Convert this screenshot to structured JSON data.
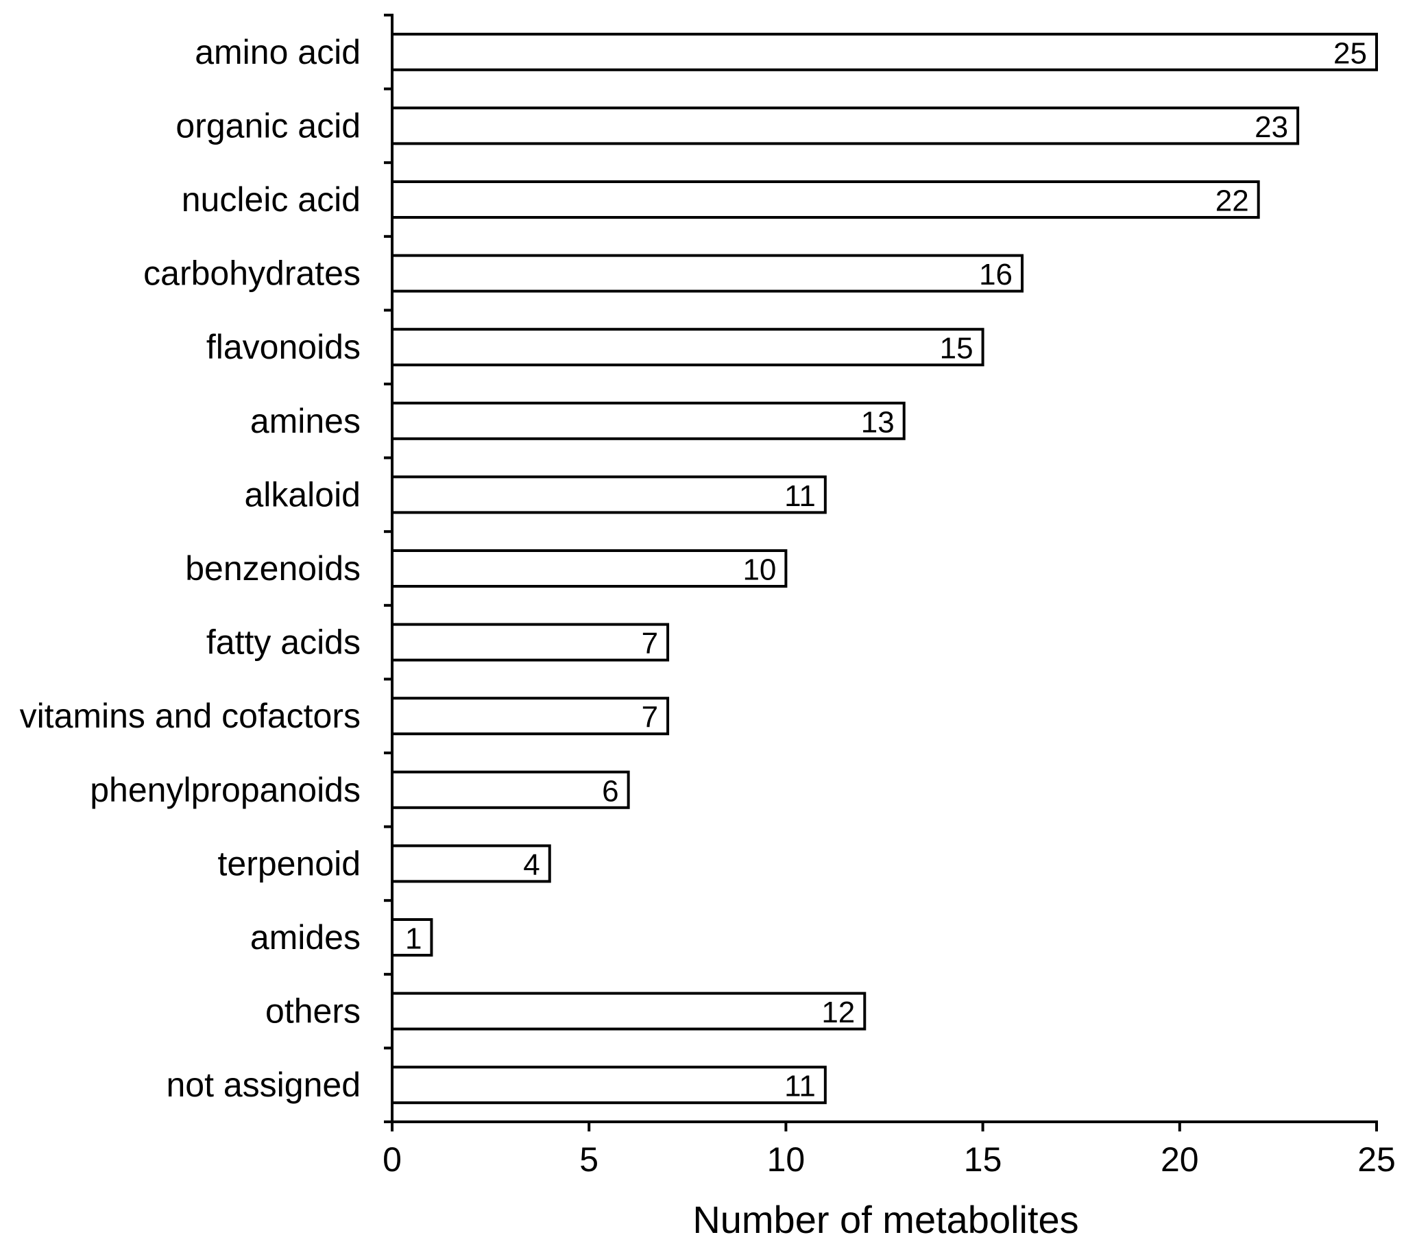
{
  "chart_data": {
    "type": "bar",
    "orientation": "horizontal",
    "categories": [
      "amino acid",
      "organic acid",
      "nucleic acid",
      "carbohydrates",
      "flavonoids",
      "amines",
      "alkaloid",
      "benzenoids",
      "fatty acids",
      "vitamins and cofactors",
      "phenylpropanoids",
      "terpenoid",
      "amides",
      "others",
      "not assigned"
    ],
    "values": [
      25,
      23,
      22,
      16,
      15,
      13,
      11,
      10,
      7,
      7,
      6,
      4,
      1,
      12,
      11
    ],
    "data_labels": [
      "25",
      "23",
      "22",
      "16",
      "15",
      "13",
      "11",
      "10",
      "7",
      "7",
      "6",
      "4",
      "1",
      "12",
      "11"
    ],
    "xlabel": "Number of metabolites",
    "ylabel": "",
    "xlim": [
      0,
      25
    ],
    "x_ticks": [
      0,
      5,
      10,
      15,
      20,
      25
    ],
    "x_tick_labels": [
      "0",
      "5",
      "10",
      "15",
      "20",
      "25"
    ],
    "grid": false,
    "legend": "none",
    "colors": {
      "bar_fill": "#ffffff",
      "bar_stroke": "#000000",
      "text": "#000000"
    }
  }
}
